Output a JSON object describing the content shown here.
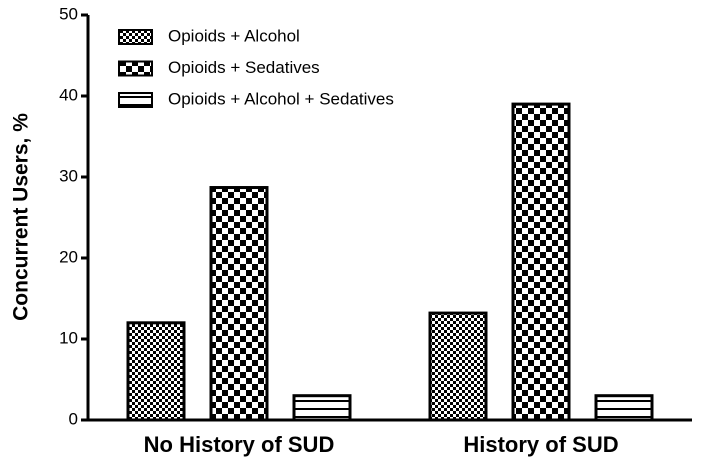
{
  "chart_data": {
    "type": "bar",
    "y_label": "Concurrent Users, %",
    "categories": [
      "No History of SUD",
      "History of SUD"
    ],
    "series": [
      {
        "name": "Opioids + Alcohol",
        "color": "#000000",
        "pattern": "fine-checker",
        "values": [
          12,
          13.2
        ]
      },
      {
        "name": "Opioids + Sedatives",
        "color": "#000000",
        "pattern": "coarse-checker",
        "values": [
          28.7,
          39
        ]
      },
      {
        "name": "Opioids + Alcohol + Sedatives",
        "color": "#000000",
        "pattern": "horizontal-lines",
        "values": [
          3,
          3
        ]
      }
    ],
    "ylim": [
      0,
      50
    ],
    "yticks": [
      0,
      10,
      20,
      30,
      40,
      50
    ],
    "grid": false,
    "legend": "top-left"
  }
}
